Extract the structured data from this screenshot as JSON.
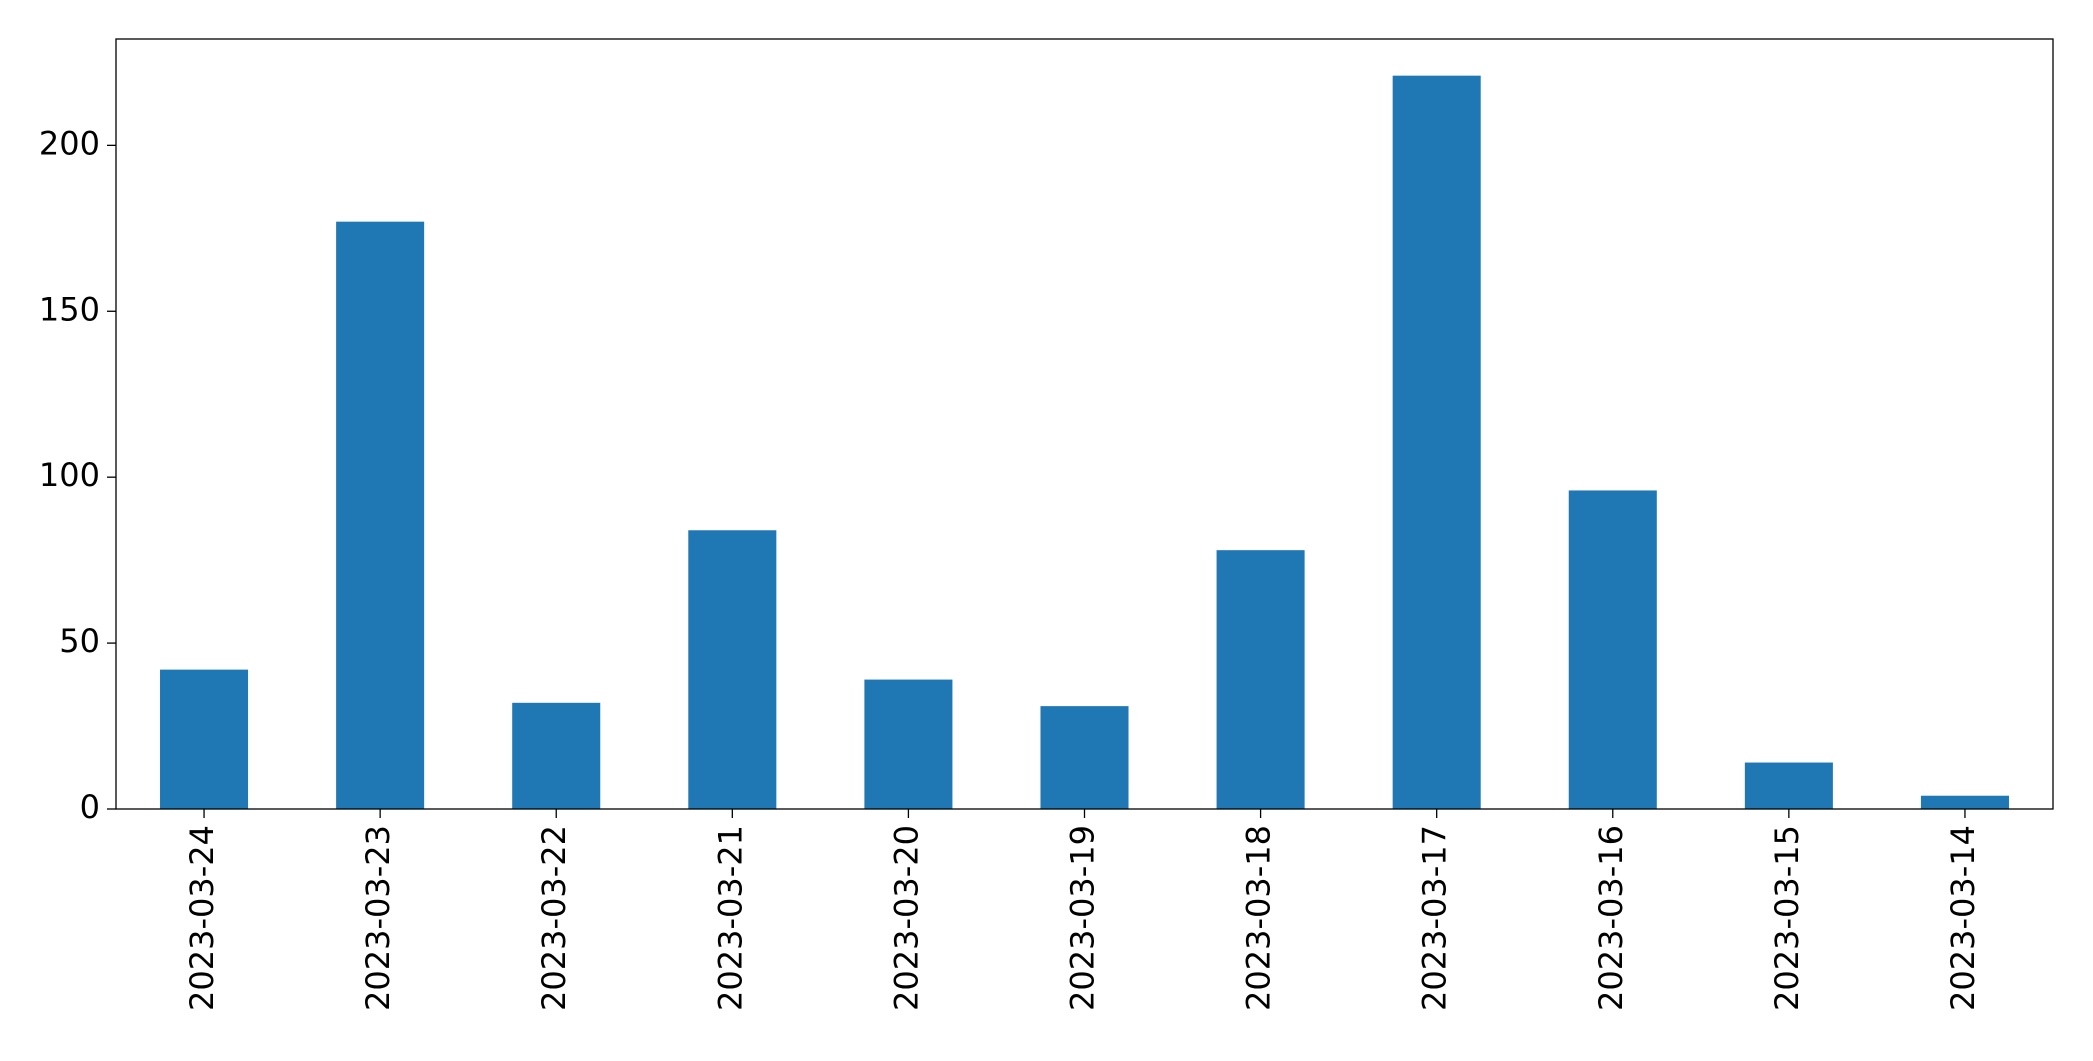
{
  "chart_data": {
    "type": "bar",
    "categories": [
      "2023-03-24",
      "2023-03-23",
      "2023-03-22",
      "2023-03-21",
      "2023-03-20",
      "2023-03-19",
      "2023-03-18",
      "2023-03-17",
      "2023-03-16",
      "2023-03-15",
      "2023-03-14"
    ],
    "values": [
      42,
      177,
      32,
      84,
      39,
      31,
      78,
      221,
      96,
      14,
      4
    ],
    "color": "#1f77b4",
    "ylim": [
      0,
      232.05
    ],
    "yticks": [
      0,
      50,
      100,
      150,
      200
    ],
    "grid": false
  }
}
